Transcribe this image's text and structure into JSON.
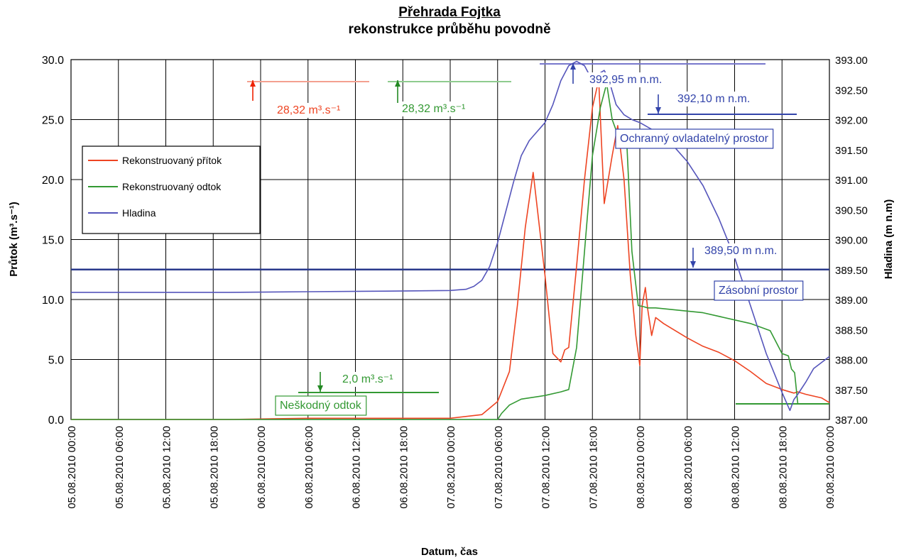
{
  "chart_data": {
    "type": "line",
    "title": "Přehrada Fojtka",
    "subtitle": "rekonstrukce průběhu povodně",
    "xlabel": "Datum, čas",
    "ylabel_left": "Průtok (m³.s⁻¹)",
    "ylabel_right": "Hladina (m n.m)",
    "ylim_left": [
      0,
      30
    ],
    "ylim_right": [
      387,
      393
    ],
    "xlim_hours": [
      0,
      96
    ],
    "grid": true,
    "legend_position": "left",
    "x_tick_labels": [
      "05.08.2010 00:00",
      "05.08.2010 06:00",
      "05.08.2010 12:00",
      "05.08.2010 18:00",
      "06.08.2010 00:00",
      "06.08.2010 06:00",
      "06.08.2010 12:00",
      "06.08.2010 18:00",
      "07.08.2010 00:00",
      "07.08.2010 06:00",
      "07.08.2010 12:00",
      "07.08.2010 18:00",
      "08.08.2010 00:00",
      "08.08.2010 06:00",
      "08.08.2010 12:00",
      "08.08.2010 18:00",
      "09.08.2010 00:00"
    ],
    "y_left_ticks": [
      "0.0",
      "5.0",
      "10.0",
      "15.0",
      "20.0",
      "25.0",
      "30.0"
    ],
    "y_right_ticks": [
      "387.00",
      "387.50",
      "388.00",
      "388.50",
      "389.00",
      "389.50",
      "390.00",
      "390.50",
      "391.00",
      "391.50",
      "392.00",
      "392.50",
      "393.00"
    ],
    "series": [
      {
        "name": "Rekonstruovaný přítok",
        "color": "#ee4422",
        "axis": "left",
        "x_hours": [
          0,
          20,
          30,
          48,
          52,
          54,
          55.5,
          56.5,
          57.5,
          58.5,
          60,
          61,
          62,
          62.5,
          63,
          64,
          65,
          66,
          66.8,
          67.5,
          68.5,
          69.2,
          70,
          70.8,
          71.5,
          72,
          72.3,
          72.7,
          73,
          73.5,
          74,
          75,
          76,
          78,
          80,
          82,
          84,
          86,
          88,
          90,
          91.5,
          92,
          93,
          95,
          96
        ],
        "values": [
          0,
          0,
          0.1,
          0.1,
          0.4,
          1.5,
          4.0,
          9.5,
          16,
          20.6,
          12,
          5.5,
          4.8,
          5.8,
          6.0,
          12.8,
          20,
          26,
          28.3,
          18,
          22,
          24.5,
          20,
          12,
          7,
          4.5,
          9.5,
          11.0,
          9.2,
          7,
          8.5,
          8.0,
          7.6,
          6.8,
          6.1,
          5.6,
          4.9,
          4.0,
          3.0,
          2.5,
          2.2,
          2.3,
          2.1,
          1.8,
          1.4
        ]
      },
      {
        "name": "Rekonstruovaný odtok",
        "color": "#339933",
        "axis": "left",
        "x_hours": [
          0,
          52,
          54,
          54.5,
          55.5,
          57,
          60,
          62,
          63,
          64,
          65,
          66,
          67,
          67.8,
          68.5,
          69.5,
          70.3,
          71,
          71.8,
          72.5,
          73,
          73.3,
          74,
          80,
          86,
          88.5,
          90,
          90.8,
          91.2,
          91.6,
          92,
          96
        ],
        "values": [
          0,
          0,
          0,
          0.5,
          1.2,
          1.7,
          2.0,
          2.3,
          2.5,
          6,
          14,
          22,
          26,
          28.0,
          25,
          23.2,
          23.8,
          14,
          9.5,
          9.4,
          9.3,
          9.3,
          9.3,
          8.9,
          8.0,
          7.4,
          5.5,
          5.3,
          4.2,
          3.9,
          1.3,
          1.3
        ]
      },
      {
        "name": "Hladina",
        "color": "#5555bb",
        "axis": "right",
        "x_hours": [
          0,
          10,
          20,
          30,
          40,
          48,
          50,
          51,
          52,
          53,
          54,
          55,
          56,
          57,
          58,
          59,
          60,
          61,
          62,
          63,
          64,
          65,
          66,
          67,
          67.5,
          68,
          69,
          70,
          71,
          72,
          74,
          76,
          78,
          80,
          82,
          84,
          86,
          88,
          90,
          91,
          91.5,
          92,
          93,
          94,
          96
        ],
        "values": [
          389.12,
          389.12,
          389.12,
          389.13,
          389.14,
          389.15,
          389.17,
          389.22,
          389.32,
          389.55,
          389.95,
          390.45,
          390.95,
          391.4,
          391.65,
          391.8,
          391.95,
          392.25,
          392.65,
          392.9,
          392.97,
          392.9,
          392.65,
          392.78,
          392.82,
          392.7,
          392.25,
          392.08,
          392.0,
          391.95,
          391.8,
          391.6,
          391.3,
          390.9,
          390.35,
          389.7,
          388.9,
          388.1,
          387.45,
          387.15,
          387.33,
          387.42,
          387.62,
          387.85,
          388.05
        ]
      }
    ],
    "reference_lines": [
      {
        "label": "389,50 m n.m.",
        "value": 389.5
      },
      {
        "label": "392,95 m n.m."
      },
      {
        "label": "392,10 m n.m."
      },
      {
        "label": "28,32 m³.s⁻¹",
        "color": "#ee4422"
      },
      {
        "label": "28,32 m³.s⁻¹",
        "color": "#339933"
      },
      {
        "label": "2,0 m³.s⁻¹",
        "color": "#339933"
      }
    ],
    "zone_labels": [
      "Ochranný ovladatelný prostor",
      "Zásobní prostor",
      "Neškodný odtok"
    ]
  }
}
